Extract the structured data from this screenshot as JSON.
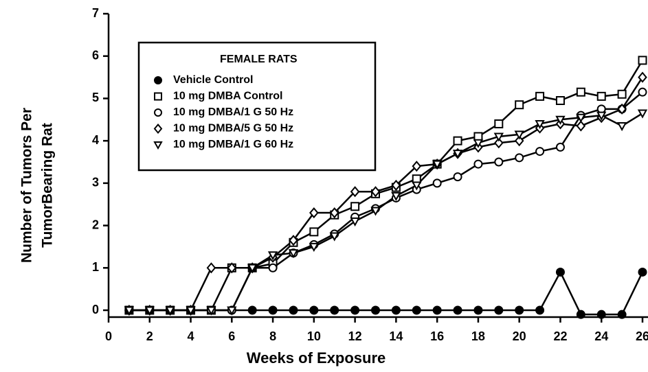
{
  "chart_data": {
    "type": "line",
    "xlabel": "Weeks of Exposure",
    "ylabel": [
      "Number of Tumors Per",
      "TumorBearing Rat"
    ],
    "legend_title": "FEMALE RATS",
    "x": [
      1,
      2,
      3,
      4,
      5,
      6,
      7,
      8,
      9,
      10,
      11,
      12,
      13,
      14,
      15,
      16,
      17,
      18,
      19,
      20,
      21,
      22,
      23,
      24,
      25,
      26
    ],
    "series": [
      {
        "name": "Vehicle Control",
        "color": "#000000",
        "marker": "circle-filled",
        "values": [
          0,
          0,
          0,
          0,
          0,
          0,
          0,
          0,
          0,
          0,
          0,
          0,
          0,
          0,
          0,
          0,
          0,
          0,
          0,
          0,
          0,
          0.9,
          -0.1,
          -0.1,
          -0.1,
          0.9
        ]
      },
      {
        "name": "10 mg DMBA Control",
        "color": "#000000",
        "marker": "square",
        "values": [
          0,
          0,
          0,
          0,
          0,
          1,
          1,
          1.1,
          1.6,
          1.85,
          2.25,
          2.45,
          2.75,
          2.9,
          3.1,
          3.45,
          4.0,
          4.1,
          4.4,
          4.85,
          5.05,
          4.95,
          5.15,
          5.05,
          5.1,
          5.9
        ]
      },
      {
        "name": "10 mg DMBA/1 G 50 Hz",
        "color": "#000000",
        "marker": "circle",
        "values": [
          0,
          0,
          0,
          0,
          0,
          0,
          1,
          1.0,
          1.35,
          1.55,
          1.8,
          2.2,
          2.4,
          2.65,
          2.85,
          3.0,
          3.15,
          3.45,
          3.5,
          3.6,
          3.75,
          3.85,
          4.6,
          4.75,
          4.75,
          5.15
        ]
      },
      {
        "name": "10 mg DMBA/5 G 50 Hz",
        "color": "#000000",
        "marker": "diamond",
        "values": [
          0,
          0,
          0,
          0,
          1,
          1,
          1,
          1.25,
          1.65,
          2.3,
          2.3,
          2.8,
          2.8,
          2.95,
          3.4,
          3.45,
          3.7,
          3.85,
          3.95,
          4.0,
          4.3,
          4.4,
          4.35,
          4.55,
          4.75,
          5.5
        ]
      },
      {
        "name": "10 mg DMBA/1 G 60 Hz",
        "color": "#000000",
        "marker": "triangle-down",
        "values": [
          0,
          0,
          0,
          0,
          0,
          0,
          1,
          1.3,
          1.35,
          1.5,
          1.75,
          2.1,
          2.35,
          2.7,
          2.95,
          3.45,
          3.7,
          3.95,
          4.1,
          4.15,
          4.4,
          4.5,
          4.55,
          4.6,
          4.35,
          4.65
        ]
      }
    ],
    "xlim": [
      0,
      26
    ],
    "xticks": [
      0,
      2,
      4,
      6,
      8,
      10,
      12,
      14,
      16,
      18,
      20,
      22,
      24,
      26
    ],
    "ylim": [
      0,
      7
    ],
    "yticks": [
      0,
      1,
      2,
      3,
      4,
      5,
      6,
      7
    ],
    "grid": false
  }
}
